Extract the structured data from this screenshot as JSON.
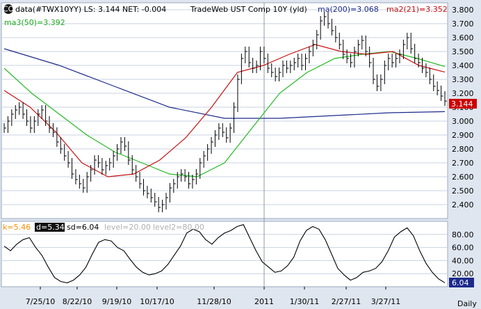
{
  "header": {
    "icon_text": "CO",
    "main_label": "data(#TWX10YY) LS: 3.144  NET: -0.004",
    "title": "TradeWeb UST Comp 10Y (yld)",
    "ma200_label": "ma(200)=3.068",
    "ma21_label": "ma2(21)=3.352",
    "ma50_label": "ma3(50)=3.392"
  },
  "footer": {
    "daily_label": "Daily"
  },
  "colors": {
    "background": "#ffffff",
    "frame": "#dfe6f0",
    "grid": "#c8d2e0",
    "price": "#000000",
    "ma200": "#1c2a8a",
    "ma21": "#c81010",
    "ma50": "#22bb22",
    "last_price_bg": "#cc0000",
    "stoch_value_bg": "#1c2a8a",
    "k_label": "#ff8c00",
    "level_label": "#b0b0b0"
  },
  "chart_data": [
    {
      "type": "line",
      "title": "TradeWeb UST Comp 10Y (yld)",
      "ylim": [
        2.3,
        3.85
      ],
      "y_ticks": [
        "3.800",
        "3.700",
        "3.600",
        "3.500",
        "3.400",
        "3.300",
        "3.200",
        "3.100",
        "3.000",
        "2.900",
        "2.800",
        "2.700",
        "2.600",
        "2.500",
        "2.400"
      ],
      "x_ticks": [
        "7/25/10",
        "8/22/10",
        "9/19/10",
        "10/17/10",
        "11/28/10",
        "2011",
        "1/30/11",
        "2/27/11",
        "3/27/11"
      ],
      "last_value_label": "3.144",
      "series": [
        {
          "name": "data(#TWX10YY)",
          "style": "hlc-bars",
          "values": [
            2.95,
            3.0,
            3.05,
            3.08,
            3.1,
            3.05,
            3.0,
            2.95,
            3.0,
            3.05,
            3.08,
            3.0,
            2.95,
            2.92,
            2.85,
            2.8,
            2.75,
            2.7,
            2.62,
            2.58,
            2.55,
            2.52,
            2.6,
            2.65,
            2.72,
            2.7,
            2.65,
            2.68,
            2.7,
            2.75,
            2.8,
            2.85,
            2.82,
            2.72,
            2.65,
            2.6,
            2.55,
            2.5,
            2.48,
            2.45,
            2.42,
            2.38,
            2.4,
            2.45,
            2.52,
            2.55,
            2.6,
            2.62,
            2.6,
            2.55,
            2.58,
            2.62,
            2.7,
            2.75,
            2.8,
            2.85,
            2.9,
            2.95,
            2.92,
            2.88,
            2.95,
            3.1,
            3.3,
            3.45,
            3.5,
            3.42,
            3.38,
            3.4,
            3.5,
            3.45,
            3.38,
            3.35,
            3.32,
            3.35,
            3.4,
            3.38,
            3.4,
            3.42,
            3.45,
            3.4,
            3.45,
            3.5,
            3.55,
            3.62,
            3.72,
            3.75,
            3.7,
            3.65,
            3.6,
            3.55,
            3.48,
            3.45,
            3.42,
            3.5,
            3.55,
            3.58,
            3.5,
            3.42,
            3.3,
            3.25,
            3.3,
            3.4,
            3.45,
            3.42,
            3.45,
            3.48,
            3.55,
            3.6,
            3.52,
            3.45,
            3.42,
            3.38,
            3.35,
            3.3,
            3.25,
            3.22,
            3.18,
            3.144
          ]
        },
        {
          "name": "ma(200)",
          "values": [
            3.52,
            3.4,
            3.25,
            3.1,
            3.02,
            3.02,
            3.04,
            3.06,
            3.068
          ]
        },
        {
          "name": "ma2(21)",
          "values": [
            3.22,
            3.1,
            2.92,
            2.7,
            2.6,
            2.62,
            2.72,
            2.88,
            3.1,
            3.35,
            3.4,
            3.48,
            3.55,
            3.5,
            3.48,
            3.5,
            3.4,
            3.352
          ]
        },
        {
          "name": "ma3(50)",
          "values": [
            3.38,
            3.2,
            3.05,
            2.9,
            2.78,
            2.7,
            2.62,
            2.6,
            2.7,
            2.95,
            3.2,
            3.35,
            3.45,
            3.48,
            3.5,
            3.45,
            3.392
          ]
        }
      ]
    },
    {
      "type": "line",
      "title": "",
      "ylim": [
        0,
        100
      ],
      "y_ticks": [
        "80.00",
        "60.00",
        "40.00",
        "20.00"
      ],
      "labels": {
        "k": "k=5.46",
        "d": "d=5.34",
        "sd": "sd=6.04",
        "level": "level=20.00",
        "level2": "level2=80.00"
      },
      "last_value_label": "6.04",
      "series": [
        {
          "name": "sd",
          "values": [
            62,
            55,
            65,
            72,
            75,
            60,
            48,
            30,
            14,
            8,
            6,
            10,
            18,
            30,
            50,
            68,
            72,
            70,
            60,
            55,
            42,
            30,
            22,
            18,
            20,
            24,
            34,
            48,
            62,
            82,
            88,
            84,
            72,
            65,
            75,
            82,
            86,
            92,
            95,
            75,
            55,
            38,
            30,
            22,
            24,
            32,
            45,
            70,
            86,
            92,
            88,
            72,
            50,
            28,
            18,
            10,
            14,
            22,
            24,
            28,
            38,
            55,
            76,
            84,
            90,
            78,
            55,
            36,
            22,
            12,
            6.04
          ]
        }
      ]
    }
  ]
}
